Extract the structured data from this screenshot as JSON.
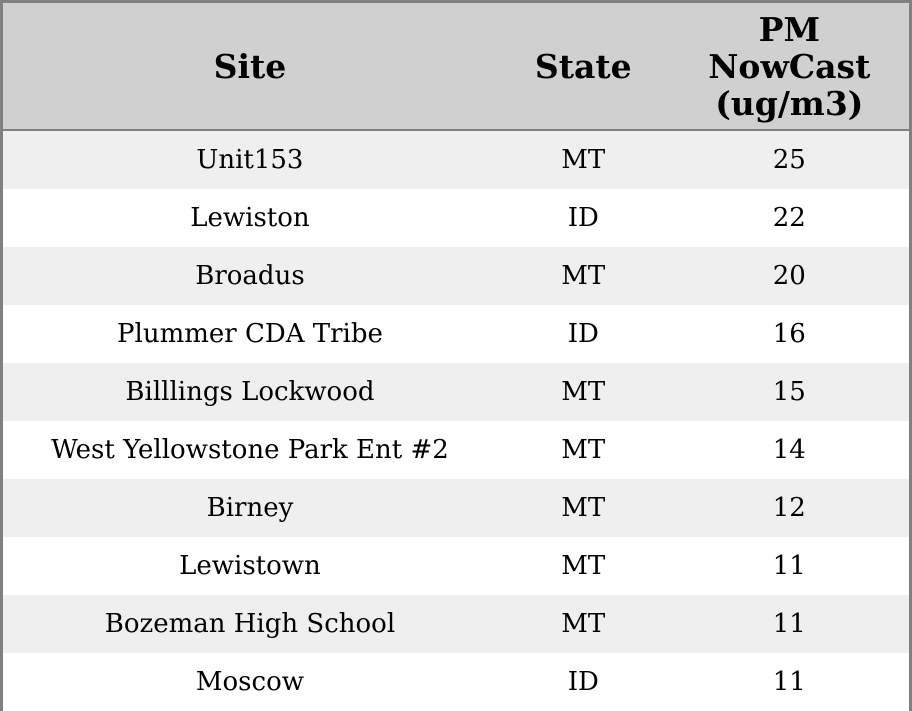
{
  "theme": {
    "header_bg": "#d0d0d0",
    "border_color": "#808080",
    "row_alt_bg": "#efefef",
    "text_color": "#000000"
  },
  "table": {
    "columns": {
      "site": "Site",
      "state": "State",
      "pm_full": "PM NowCast (ug/m3)",
      "pm_lines": [
        "PM",
        "NowCast",
        "(ug/m3)"
      ]
    },
    "rows": [
      {
        "site": "Unit153",
        "state": "MT",
        "value": "25"
      },
      {
        "site": "Lewiston",
        "state": "ID",
        "value": "22"
      },
      {
        "site": "Broadus",
        "state": "MT",
        "value": "20"
      },
      {
        "site": "Plummer CDA Tribe",
        "state": "ID",
        "value": "16"
      },
      {
        "site": "Billlings Lockwood",
        "state": "MT",
        "value": "15"
      },
      {
        "site": "West Yellowstone Park Ent #2",
        "state": "MT",
        "value": "14"
      },
      {
        "site": "Birney",
        "state": "MT",
        "value": "12"
      },
      {
        "site": "Lewistown",
        "state": "MT",
        "value": "11"
      },
      {
        "site": "Bozeman High School",
        "state": "MT",
        "value": "11"
      },
      {
        "site": "Moscow",
        "state": "ID",
        "value": "11"
      }
    ]
  }
}
